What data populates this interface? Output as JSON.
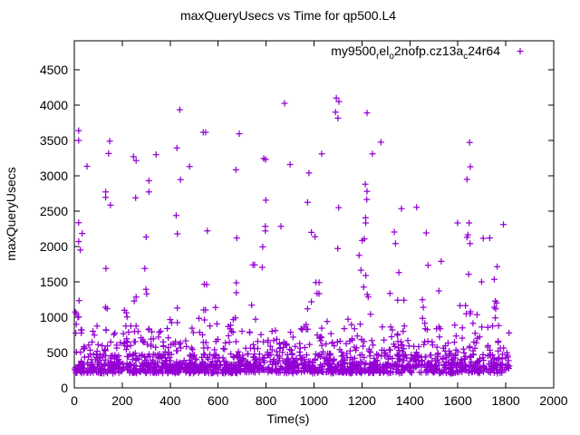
{
  "window": {
    "background": "#ffffff"
  },
  "chart_data": {
    "type": "scatter",
    "title": "maxQueryUsecs vs Time for qp500.L4",
    "xlabel": "Time(s)",
    "ylabel": "maxQueryUsecs",
    "xlim": [
      0,
      2000
    ],
    "ylim": [
      0,
      4910
    ],
    "xticks": [
      0,
      200,
      400,
      600,
      800,
      1000,
      1200,
      1400,
      1600,
      1800,
      2000
    ],
    "yticks": [
      0,
      500,
      1000,
      1500,
      2000,
      2500,
      3000,
      3500,
      4000,
      4500
    ],
    "grid": false,
    "axis_color": "#000000",
    "text_color": "#000000",
    "legend": {
      "position": "top-right-inside",
      "marker": "plus-icon"
    },
    "series": [
      {
        "name": "my9500_rel_o2nofp.cz13a_c24r64",
        "name_display": [
          {
            "t": "my9500"
          },
          {
            "t": "r",
            "sub": true
          },
          {
            "t": "el"
          },
          {
            "t": "o",
            "sub": true
          },
          {
            "t": "2nofp.cz13a"
          },
          {
            "t": "c",
            "sub": true
          },
          {
            "t": "24r64"
          }
        ],
        "marker": "plus",
        "color": "#9400D3",
        "outlier_points": [
          [
            18,
            3640
          ],
          [
            18,
            3500
          ],
          [
            53,
            3135
          ],
          [
            131,
            2773
          ],
          [
            131,
            2695
          ],
          [
            143,
            3315
          ],
          [
            148,
            3490
          ],
          [
            151,
            2585
          ],
          [
            247,
            3270
          ],
          [
            258,
            3215
          ],
          [
            256,
            2690
          ],
          [
            311,
            2930
          ],
          [
            311,
            2773
          ],
          [
            341,
            3300
          ],
          [
            428,
            3395
          ],
          [
            440,
            3935
          ],
          [
            443,
            2945
          ],
          [
            481,
            3130
          ],
          [
            425,
            2440
          ],
          [
            300,
            2135
          ],
          [
            430,
            2180
          ],
          [
            18,
            2337
          ],
          [
            33,
            2185
          ],
          [
            18,
            2070
          ],
          [
            25,
            1950
          ],
          [
            132,
            1690
          ],
          [
            294,
            1690
          ],
          [
            299,
            1395
          ],
          [
            302,
            1330
          ],
          [
            20,
            1235
          ],
          [
            258,
            1285
          ],
          [
            250,
            1227
          ],
          [
            130,
            1141
          ],
          [
            137,
            1119
          ],
          [
            209,
            1098
          ],
          [
            217,
            1064
          ],
          [
            430,
            1130
          ],
          [
            8,
            1051
          ],
          [
            18,
            1004
          ],
          [
            220,
            1004
          ],
          [
            400,
            966
          ],
          [
            406,
            923
          ],
          [
            430,
            923
          ],
          [
            28,
            820
          ],
          [
            95,
            876
          ],
          [
            132,
            820
          ],
          [
            215,
            875
          ],
          [
            236,
            875
          ],
          [
            258,
            875
          ],
          [
            312,
            833
          ],
          [
            491,
            845
          ],
          [
            538,
            3615
          ],
          [
            548,
            3615
          ],
          [
            674,
            3085
          ],
          [
            688,
            3595
          ],
          [
            790,
            3245
          ],
          [
            798,
            3230
          ],
          [
            877,
            4025
          ],
          [
            900,
            3160
          ],
          [
            979,
            3040
          ],
          [
            799,
            2655
          ],
          [
            973,
            2625
          ],
          [
            555,
            2220
          ],
          [
            797,
            2285
          ],
          [
            797,
            2220
          ],
          [
            862,
            2285
          ],
          [
            989,
            2200
          ],
          [
            1004,
            2140
          ],
          [
            678,
            2120
          ],
          [
            786,
            1995
          ],
          [
            745,
            1740
          ],
          [
            752,
            1740
          ],
          [
            784,
            1705
          ],
          [
            542,
            1466
          ],
          [
            552,
            1462
          ],
          [
            676,
            1487
          ],
          [
            676,
            1346
          ],
          [
            589,
            1137
          ],
          [
            540,
            1103
          ],
          [
            548,
            1103
          ],
          [
            520,
            985
          ],
          [
            543,
            961
          ],
          [
            663,
            966
          ],
          [
            672,
            991
          ],
          [
            566,
            876
          ],
          [
            595,
            905
          ],
          [
            642,
            868
          ],
          [
            652,
            889
          ],
          [
            756,
            970
          ],
          [
            959,
            863
          ],
          [
            967,
            893
          ],
          [
            779,
            752
          ],
          [
            740,
            1170
          ],
          [
            973,
            1119
          ],
          [
            989,
            1218
          ],
          [
            1032,
            3310
          ],
          [
            1090,
            3900
          ],
          [
            1093,
            4100
          ],
          [
            1104,
            4050
          ],
          [
            1100,
            3815
          ],
          [
            1214,
            2880
          ],
          [
            1221,
            3890
          ],
          [
            1221,
            2780
          ],
          [
            1244,
            3310
          ],
          [
            1279,
            3475
          ],
          [
            1220,
            2665
          ],
          [
            1103,
            2550
          ],
          [
            1365,
            2535
          ],
          [
            1428,
            2555
          ],
          [
            1215,
            2405
          ],
          [
            1216,
            2333
          ],
          [
            1335,
            2205
          ],
          [
            1468,
            2192
          ],
          [
            1201,
            2085
          ],
          [
            1210,
            2107
          ],
          [
            1340,
            2042
          ],
          [
            1099,
            1970
          ],
          [
            1188,
            1875
          ],
          [
            1476,
            1735
          ],
          [
            1196,
            1665
          ],
          [
            1216,
            1590
          ],
          [
            1354,
            1632
          ],
          [
            1008,
            1490
          ],
          [
            1013,
            1337
          ],
          [
            1021,
            1490
          ],
          [
            1207,
            1427
          ],
          [
            1222,
            1320
          ],
          [
            1226,
            1286
          ],
          [
            1021,
            1333
          ],
          [
            1317,
            1337
          ],
          [
            1521,
            1372
          ],
          [
            1349,
            1240
          ],
          [
            1375,
            1240
          ],
          [
            1452,
            1247
          ],
          [
            1456,
            1140
          ],
          [
            1055,
            940
          ],
          [
            1032,
            845
          ],
          [
            1142,
            970
          ],
          [
            1156,
            893
          ],
          [
            1193,
            900
          ],
          [
            1236,
            1042
          ],
          [
            1285,
            863
          ],
          [
            1320,
            863
          ],
          [
            1377,
            876
          ],
          [
            1453,
            985
          ],
          [
            1462,
            914
          ],
          [
            1511,
            837
          ],
          [
            1521,
            863
          ],
          [
            1638,
            2950
          ],
          [
            1649,
            3470
          ],
          [
            1652,
            3128
          ],
          [
            1599,
            2333
          ],
          [
            1647,
            2333
          ],
          [
            1790,
            2310
          ],
          [
            1638,
            2130
          ],
          [
            1642,
            2165
          ],
          [
            1651,
            2042
          ],
          [
            1706,
            2115
          ],
          [
            1733,
            2120
          ],
          [
            1531,
            1790
          ],
          [
            1764,
            1715
          ],
          [
            1645,
            1607
          ],
          [
            1699,
            1500
          ],
          [
            1752,
            1535
          ],
          [
            1609,
            1163
          ],
          [
            1632,
            1163
          ],
          [
            1635,
            1047
          ],
          [
            1651,
            1047
          ],
          [
            1653,
            1077
          ],
          [
            1756,
            1227
          ],
          [
            1762,
            1201
          ],
          [
            1752,
            1141
          ],
          [
            1758,
            1119
          ],
          [
            1680,
            1034
          ],
          [
            1756,
            991
          ],
          [
            1663,
            914
          ],
          [
            1587,
            889
          ],
          [
            1619,
            850
          ],
          [
            1700,
            860
          ],
          [
            1725,
            855
          ],
          [
            1745,
            875
          ],
          [
            1770,
            880
          ],
          [
            4,
            1073
          ],
          [
            15,
            1000
          ],
          [
            8,
            901
          ],
          [
            31,
            816
          ],
          [
            6,
            775
          ],
          [
            29,
            775
          ]
        ],
        "dense_band": {
          "seed": 1337,
          "x_range": [
            2,
            1815
          ],
          "layers": [
            {
              "count": 900,
              "y_range": [
                205,
                335
              ]
            },
            {
              "count": 420,
              "y_range": [
                320,
                480
              ]
            },
            {
              "count": 190,
              "y_range": [
                460,
                660
              ]
            },
            {
              "count": 90,
              "y_range": [
                640,
                840
              ]
            }
          ]
        }
      }
    ]
  }
}
